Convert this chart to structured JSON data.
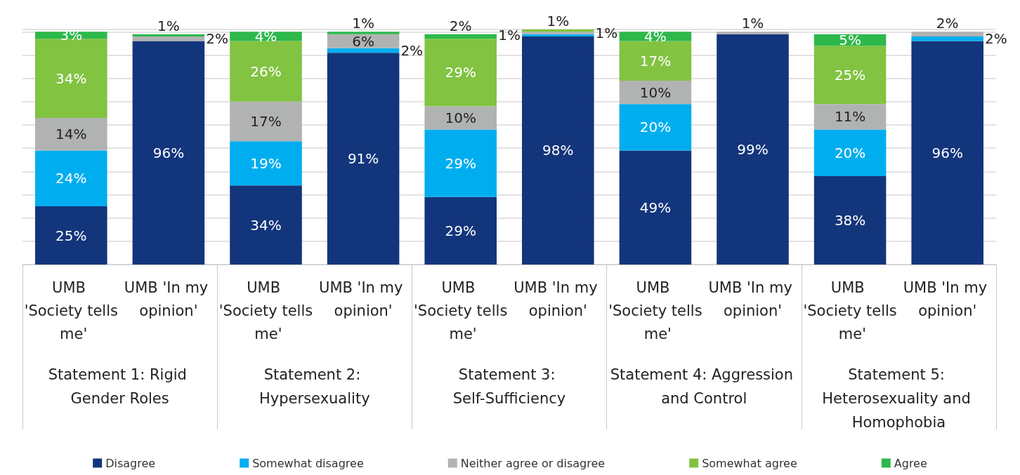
{
  "chart_data": {
    "type": "bar",
    "stacked": true,
    "grid": "y",
    "legend": "bottom",
    "tick_labels": "x",
    "categories": [
      "UMB 'Society tells me'",
      "UMB 'In my opinion'",
      "UMB 'Society tells me'",
      "UMB 'In my opinion'",
      "UMB 'Society tells me'",
      "UMB 'In my opinion'",
      "UMB 'Society tells me'",
      "UMB 'In my opinion'",
      "UMB 'Society tells me'",
      "UMB 'In my opinion'"
    ],
    "annotations": [
      "Statement 1: Rigid Gender Roles",
      "Statement 2: Hypersexuality",
      "Statement 3: Self-Sufficiency",
      "Statement 4: Aggression and Control",
      "Statement 5: Heterosexuality and Homophobia"
    ],
    "series": [
      {
        "name": "Disagree",
        "color": "#13357b",
        "values": [
          25,
          96,
          34,
          91,
          29,
          98,
          49,
          99,
          38,
          96
        ],
        "value_labels": [
          "25%",
          "96%",
          "34%",
          "91%",
          "29%",
          "98%",
          "49%",
          "99%",
          "38%",
          "96%"
        ]
      },
      {
        "name": "Somewhat disagree",
        "color": "#00aeef",
        "values": [
          24,
          null,
          19,
          2,
          29,
          1,
          20,
          null,
          20,
          2
        ],
        "value_labels": [
          "24%",
          null,
          "19%",
          "2%",
          "29%",
          "1%",
          "20%",
          null,
          "20%",
          "2%"
        ]
      },
      {
        "name": "Neither agree or disagree",
        "color": "#b1b3b3",
        "values": [
          14,
          2,
          17,
          6,
          10,
          1,
          10,
          1,
          11,
          2
        ],
        "value_labels": [
          "14%",
          "2%",
          "17%",
          "6%",
          "10%",
          "1%",
          "10%",
          "1%",
          "11%",
          "2%"
        ]
      },
      {
        "name": "Somewhat agree",
        "color": "#82c341",
        "values": [
          34,
          null,
          26,
          null,
          29,
          1,
          17,
          null,
          25,
          null
        ],
        "value_labels": [
          "34%",
          null,
          "26%",
          null,
          "29%",
          "1%",
          "17%",
          null,
          "25%",
          null
        ]
      },
      {
        "name": "Agree",
        "color": "#2db84b",
        "values": [
          3,
          1,
          4,
          1,
          2,
          null,
          4,
          null,
          5,
          null
        ],
        "value_labels": [
          "3%",
          "1%",
          "4%",
          "1%",
          "2%",
          null,
          "4%",
          null,
          "5%",
          null
        ]
      }
    ]
  }
}
